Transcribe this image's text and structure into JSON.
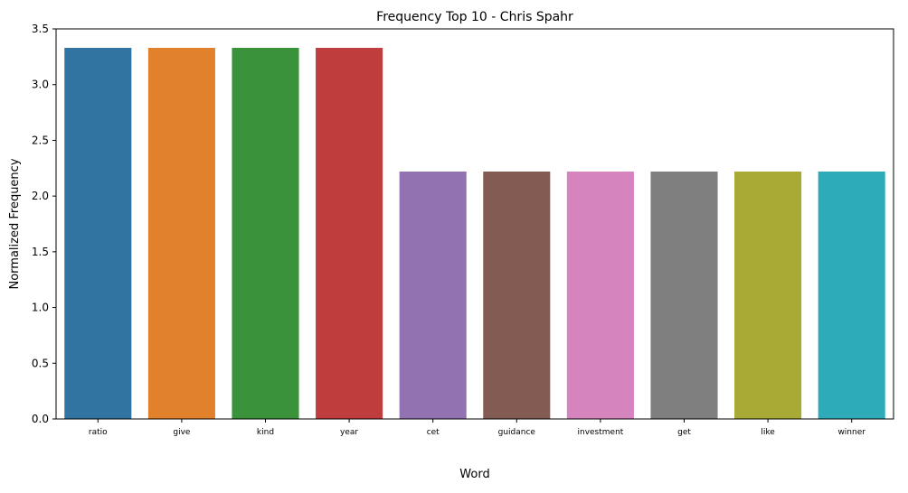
{
  "chart_data": {
    "type": "bar",
    "title": "Frequency Top 10 - Chris Spahr",
    "xlabel": "Word",
    "ylabel": "Normalized Frequency",
    "categories": [
      "ratio",
      "give",
      "kind",
      "year",
      "cet",
      "guidance",
      "investment",
      "get",
      "like",
      "winner"
    ],
    "values": [
      3.33,
      3.33,
      3.33,
      3.33,
      2.22,
      2.22,
      2.22,
      2.22,
      2.22,
      2.22
    ],
    "colors": [
      "#3274a1",
      "#e1812c",
      "#3a923a",
      "#c03d3e",
      "#9372b2",
      "#845b53",
      "#d684bd",
      "#7f7f7f",
      "#a9aa35",
      "#2eabb8"
    ],
    "ylim": [
      0,
      3.5
    ],
    "yticks": [
      "0.0",
      "0.5",
      "1.0",
      "1.5",
      "2.0",
      "2.5",
      "3.0",
      "3.5"
    ],
    "grid": false,
    "legend": "none"
  }
}
